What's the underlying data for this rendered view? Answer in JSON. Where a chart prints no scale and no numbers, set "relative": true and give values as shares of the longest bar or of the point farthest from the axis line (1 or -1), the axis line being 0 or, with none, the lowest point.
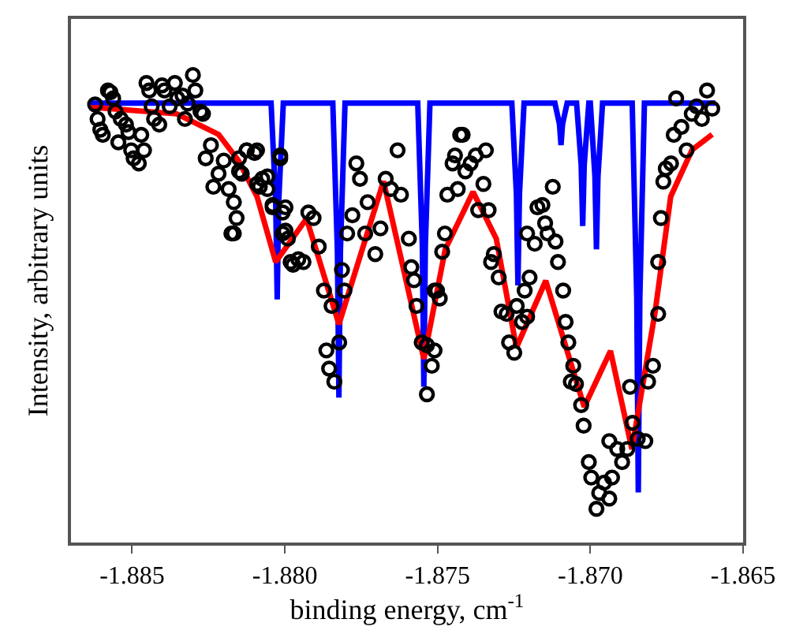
{
  "chart_data": {
    "type": "scatter",
    "relative": true,
    "xlabel": "binding energy, cm$^{-1}$",
    "ylabel": "Intensity, arbitrary units",
    "xlim": [
      -1.887,
      -1.865
    ],
    "xticks": [
      -1.885,
      {
        "value": -1.88,
        "label": "-1.880"
      },
      -1.875,
      {
        "value": -1.87,
        "label": "-1.870"
      },
      -1.865
    ],
    "legend": false,
    "tick_labels": "x",
    "series": [
      {
        "type": "line",
        "marker": "none",
        "color": "#0000ff",
        "x": [
          -1.88636,
          -1.88045,
          -1.8803,
          -1.88025,
          -1.8802,
          -1.88005,
          -1.87843,
          -1.87828,
          -1.87823,
          -1.87818,
          -1.87803,
          -1.87565,
          -1.8755,
          -1.87545,
          -1.8754,
          -1.87525,
          -1.87257,
          -1.87242,
          -1.87237,
          -1.87232,
          -1.87217,
          -1.87116,
          -1.87101,
          -1.87096,
          -1.87091,
          -1.87076,
          -1.87045,
          -1.8703,
          -1.87025,
          -1.8702,
          -1.87005,
          -1.87,
          -1.86985,
          -1.8698,
          -1.86975,
          -1.8696,
          -1.86863,
          -1.86848,
          -1.86843,
          -1.86838,
          -1.86823,
          -1.86591
        ],
        "values": [
          0.94,
          0.94,
          0.73,
          0.52,
          0.73,
          0.94,
          0.94,
          0.625,
          0.31,
          0.625,
          0.94,
          0.94,
          0.637,
          0.333,
          0.637,
          0.94,
          0.94,
          0.745,
          0.55,
          0.745,
          0.94,
          0.94,
          0.895,
          0.85,
          0.895,
          0.94,
          0.94,
          0.808,
          0.677,
          0.808,
          0.94,
          0.94,
          0.783,
          0.627,
          0.783,
          0.94,
          0.94,
          0.523,
          0.107,
          0.523,
          0.94,
          0.94
        ]
      },
      {
        "type": "line",
        "marker": "none",
        "color": "#ff0000",
        "x": [
          -1.88636,
          -1.88606,
          -1.88354,
          -1.88217,
          -1.88152,
          -1.88091,
          -1.8803,
          -1.87929,
          -1.87823,
          -1.87677,
          -1.87545,
          -1.87475,
          -1.87384,
          -1.87308,
          -1.87242,
          -1.87146,
          -1.8702,
          -1.86934,
          -1.86864,
          -1.86788,
          -1.86737,
          -1.86667,
          -1.86601
        ],
        "values": [
          0.93,
          0.93,
          0.917,
          0.873,
          0.817,
          0.74,
          0.6,
          0.693,
          0.467,
          0.773,
          0.393,
          0.627,
          0.75,
          0.65,
          0.417,
          0.56,
          0.29,
          0.41,
          0.2,
          0.493,
          0.74,
          0.84,
          0.873
        ]
      },
      {
        "marker": "circle",
        "color": "#000000",
        "x": [
          -1.88621,
          -1.88613,
          -1.88604,
          -1.88596,
          -1.88579,
          -1.88571,
          -1.88562,
          -1.88554,
          -1.88545,
          -1.88537,
          -1.8852,
          -1.88512,
          -1.88503,
          -1.88495,
          -1.88478,
          -1.8847,
          -1.88461,
          -1.88453,
          -1.88444,
          -1.88436,
          -1.88428,
          -1.88411,
          -1.88402,
          -1.88394,
          -1.88377,
          -1.8836,
          -1.88352,
          -1.88335,
          -1.88327,
          -1.88318,
          -1.88301,
          -1.88293,
          -1.88276,
          -1.88268,
          -1.88259,
          -1.88242,
          -1.88234,
          -1.88217,
          -1.882,
          -1.88184,
          -1.88175,
          -1.88167,
          -1.8815,
          -1.88141,
          -1.88125,
          -1.88099,
          -1.88091,
          -1.88074,
          -1.88057,
          -1.8804,
          -1.88015,
          -1.88007,
          -1.87998,
          -1.87981,
          -1.88167,
          -1.88158,
          -1.8815,
          -1.88125,
          -1.88091,
          -1.88082,
          -1.88057,
          -1.8804,
          -1.88015,
          -1.88007,
          -1.87998,
          -1.8799,
          -1.87973,
          -1.87956,
          -1.87939,
          -1.87923,
          -1.87906,
          -1.87889,
          -1.87872,
          -1.87864,
          -1.87855,
          -1.87847,
          -1.87838,
          -1.87822,
          -1.87813,
          -1.87805,
          -1.87796,
          -1.87779,
          -1.87766,
          -1.87754,
          -1.87737,
          -1.87729,
          -1.87704,
          -1.87687,
          -1.8767,
          -1.87653,
          -1.87631,
          -1.8762,
          -1.87594,
          -1.87586,
          -1.87577,
          -1.87569,
          -1.87552,
          -1.87535,
          -1.87535,
          -1.87519,
          -1.8751,
          -1.87493,
          -1.87485,
          -1.87476,
          -1.87468,
          -1.87451,
          -1.87426,
          -1.8751,
          -1.87502,
          -1.87443,
          -1.87434,
          -1.87418,
          -1.87409,
          -1.87392,
          -1.87375,
          -1.87367,
          -1.8735,
          -1.87342,
          -1.87333,
          -1.87325,
          -1.87316,
          -1.873,
          -1.87291,
          -1.87274,
          -1.87266,
          -1.87249,
          -1.87241,
          -1.87224,
          -1.87215,
          -1.87207,
          -1.87199,
          -1.87207,
          -1.87182,
          -1.87173,
          -1.87157,
          -1.87148,
          -1.8714,
          -1.87123,
          -1.87114,
          -1.87106,
          -1.87089,
          -1.87081,
          -1.87072,
          -1.87056,
          -1.87064,
          -1.87047,
          -1.8703,
          -1.87022,
          -1.87005,
          -1.86997,
          -1.8698,
          -1.86971,
          -1.86955,
          -1.86938,
          -1.86929,
          -1.86938,
          -1.86912,
          -1.86896,
          -1.86879,
          -1.8687,
          -1.86862,
          -1.86845,
          -1.8682,
          -1.86811,
          -1.86795,
          -1.86778,
          -1.86778,
          -1.86769,
          -1.86761,
          -1.86753,
          -1.86736,
          -1.86727,
          -1.86702,
          -1.86719,
          -1.86685,
          -1.86668,
          -1.86652,
          -1.86635,
          -1.86618,
          -1.86601
        ],
        "values": [
          0.937,
          0.906,
          0.883,
          0.872,
          0.967,
          0.963,
          0.95,
          0.922,
          0.856,
          0.906,
          0.894,
          0.878,
          0.839,
          0.822,
          0.811,
          0.872,
          0.839,
          0.983,
          0.967,
          0.933,
          0.906,
          0.894,
          0.978,
          0.967,
          0.933,
          0.983,
          0.95,
          0.956,
          0.906,
          0.939,
          1.0,
          0.967,
          0.922,
          0.917,
          0.822,
          0.85,
          0.761,
          0.789,
          0.817,
          0.756,
          0.661,
          0.728,
          0.822,
          0.789,
          0.839,
          0.833,
          0.767,
          0.778,
          0.756,
          0.722,
          0.822,
          0.706,
          0.667,
          0.6,
          0.661,
          0.694,
          0.794,
          0.839,
          0.839,
          0.761,
          0.783,
          0.717,
          0.828,
          0.661,
          0.717,
          0.65,
          0.594,
          0.606,
          0.6,
          0.706,
          0.694,
          0.633,
          0.539,
          0.411,
          0.372,
          0.506,
          0.344,
          0.428,
          0.583,
          0.539,
          0.661,
          0.7,
          0.811,
          0.778,
          0.661,
          0.728,
          0.617,
          0.672,
          0.778,
          0.756,
          0.839,
          0.744,
          0.65,
          0.589,
          0.561,
          0.506,
          0.428,
          0.422,
          0.317,
          0.378,
          0.539,
          0.522,
          0.622,
          0.661,
          0.744,
          0.811,
          0.872,
          0.411,
          0.539,
          0.828,
          0.756,
          0.872,
          0.794,
          0.811,
          0.828,
          0.711,
          0.767,
          0.839,
          0.711,
          0.6,
          0.617,
          0.567,
          0.494,
          0.489,
          0.428,
          0.406,
          0.506,
          0.472,
          0.539,
          0.483,
          0.567,
          0.661,
          0.639,
          0.717,
          0.722,
          0.683,
          0.661,
          0.761,
          0.644,
          0.6,
          0.539,
          0.472,
          0.428,
          0.378,
          0.344,
          0.339,
          0.294,
          0.25,
          0.172,
          0.139,
          0.072,
          0.106,
          0.128,
          0.094,
          0.139,
          0.217,
          0.2,
          0.172,
          0.2,
          0.333,
          0.256,
          0.222,
          0.217,
          0.344,
          0.378,
          0.489,
          0.6,
          0.694,
          0.772,
          0.8,
          0.811,
          0.872,
          0.889,
          0.95,
          0.839,
          0.917,
          0.933,
          0.906,
          0.967,
          0.928
        ]
      }
    ]
  }
}
